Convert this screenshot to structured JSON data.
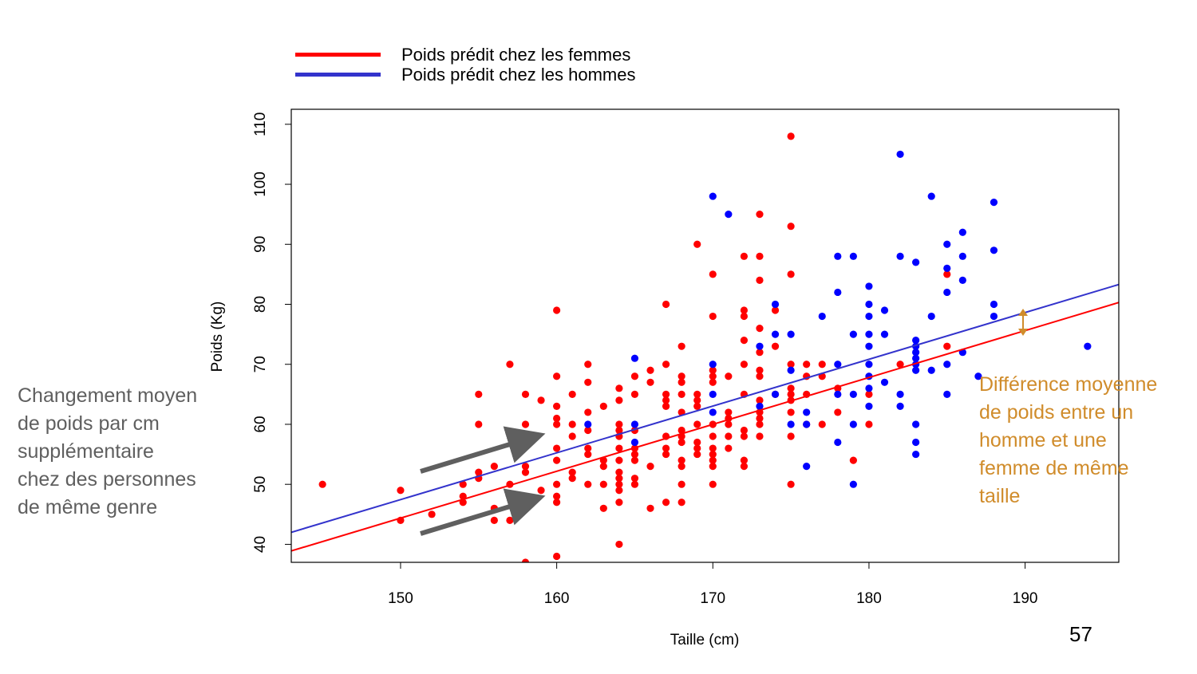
{
  "legend": {
    "items": [
      {
        "label": "Poids prédit chez les femmes",
        "color": "#ff0000"
      },
      {
        "label": "Poids prédit chez les hommes",
        "color": "#3333cc"
      }
    ]
  },
  "annotations": {
    "left": "Changement moyen de poids par cm supplémentaire chez des personnes de même genre",
    "right": "Différence moyenne de poids entre un homme et une femme de même taille",
    "arrow_color": "#5f5f5f",
    "accent_color": "#d08c2b"
  },
  "page_number": "57",
  "chart_data": {
    "type": "scatter",
    "title": "",
    "xlabel": "Taille (cm)",
    "ylabel": "Poids (Kg)",
    "xlim": [
      143,
      196
    ],
    "ylim": [
      37,
      112.5
    ],
    "xticks": [
      150,
      160,
      170,
      180,
      190
    ],
    "yticks": [
      40,
      50,
      60,
      70,
      80,
      90,
      100,
      110
    ],
    "grid": false,
    "legend_position": "top",
    "series": [
      {
        "name": "Poids prédit chez les femmes",
        "type": "line",
        "color": "#ff0000",
        "x": [
          143,
          196
        ],
        "y": [
          38.9,
          80.3
        ]
      },
      {
        "name": "Poids prédit chez les hommes",
        "type": "line",
        "color": "#3333cc",
        "x": [
          143,
          196
        ],
        "y": [
          42.0,
          83.3
        ]
      },
      {
        "name": "Femmes",
        "type": "scatter",
        "color": "#ff0000",
        "points": [
          [
            145,
            50
          ],
          [
            150,
            49
          ],
          [
            150,
            44
          ],
          [
            152,
            45
          ],
          [
            154,
            47
          ],
          [
            154,
            48
          ],
          [
            154,
            50
          ],
          [
            155,
            52
          ],
          [
            155,
            51
          ],
          [
            155,
            60
          ],
          [
            155,
            65
          ],
          [
            156,
            53
          ],
          [
            156,
            44
          ],
          [
            156,
            46
          ],
          [
            157,
            50
          ],
          [
            157,
            44
          ],
          [
            157,
            70
          ],
          [
            158,
            65
          ],
          [
            158,
            60
          ],
          [
            158,
            58
          ],
          [
            158,
            53
          ],
          [
            158,
            52
          ],
          [
            158,
            48
          ],
          [
            158,
            46
          ],
          [
            158,
            37
          ],
          [
            159,
            64
          ],
          [
            159,
            49
          ],
          [
            160,
            79
          ],
          [
            160,
            68
          ],
          [
            160,
            63
          ],
          [
            160,
            61
          ],
          [
            160,
            60
          ],
          [
            160,
            56
          ],
          [
            160,
            54
          ],
          [
            160,
            50
          ],
          [
            160,
            48
          ],
          [
            160,
            47
          ],
          [
            160,
            38
          ],
          [
            161,
            65
          ],
          [
            161,
            60
          ],
          [
            161,
            58
          ],
          [
            161,
            52
          ],
          [
            161,
            51
          ],
          [
            162,
            70
          ],
          [
            162,
            67
          ],
          [
            162,
            62
          ],
          [
            162,
            59
          ],
          [
            162,
            56
          ],
          [
            162,
            55
          ],
          [
            162,
            50
          ],
          [
            163,
            63
          ],
          [
            163,
            54
          ],
          [
            163,
            53
          ],
          [
            163,
            50
          ],
          [
            163,
            46
          ],
          [
            164,
            66
          ],
          [
            164,
            64
          ],
          [
            164,
            60
          ],
          [
            164,
            59
          ],
          [
            164,
            58
          ],
          [
            164,
            56
          ],
          [
            164,
            54
          ],
          [
            164,
            52
          ],
          [
            164,
            51
          ],
          [
            164,
            50
          ],
          [
            164,
            49
          ],
          [
            164,
            47
          ],
          [
            164,
            40
          ],
          [
            165,
            68
          ],
          [
            165,
            65
          ],
          [
            165,
            59
          ],
          [
            165,
            56
          ],
          [
            165,
            55
          ],
          [
            165,
            54
          ],
          [
            165,
            51
          ],
          [
            165,
            50
          ],
          [
            166,
            69
          ],
          [
            166,
            67
          ],
          [
            166,
            53
          ],
          [
            166,
            46
          ],
          [
            167,
            80
          ],
          [
            167,
            70
          ],
          [
            167,
            65
          ],
          [
            167,
            64
          ],
          [
            167,
            63
          ],
          [
            167,
            58
          ],
          [
            167,
            56
          ],
          [
            167,
            55
          ],
          [
            167,
            47
          ],
          [
            168,
            73
          ],
          [
            168,
            68
          ],
          [
            168,
            67
          ],
          [
            168,
            65
          ],
          [
            168,
            62
          ],
          [
            168,
            59
          ],
          [
            168,
            58
          ],
          [
            168,
            57
          ],
          [
            168,
            54
          ],
          [
            168,
            53
          ],
          [
            168,
            50
          ],
          [
            168,
            47
          ],
          [
            169,
            90
          ],
          [
            169,
            65
          ],
          [
            169,
            64
          ],
          [
            169,
            63
          ],
          [
            169,
            60
          ],
          [
            169,
            57
          ],
          [
            169,
            56
          ],
          [
            169,
            55
          ],
          [
            170,
            85
          ],
          [
            170,
            78
          ],
          [
            170,
            69
          ],
          [
            170,
            68
          ],
          [
            170,
            67
          ],
          [
            170,
            60
          ],
          [
            170,
            58
          ],
          [
            170,
            56
          ],
          [
            170,
            55
          ],
          [
            170,
            54
          ],
          [
            170,
            53
          ],
          [
            170,
            50
          ],
          [
            171,
            68
          ],
          [
            171,
            62
          ],
          [
            171,
            61
          ],
          [
            171,
            60
          ],
          [
            171,
            58
          ],
          [
            171,
            56
          ],
          [
            172,
            88
          ],
          [
            172,
            79
          ],
          [
            172,
            78
          ],
          [
            172,
            74
          ],
          [
            172,
            70
          ],
          [
            172,
            65
          ],
          [
            172,
            59
          ],
          [
            172,
            58
          ],
          [
            172,
            54
          ],
          [
            172,
            53
          ],
          [
            173,
            95
          ],
          [
            173,
            88
          ],
          [
            173,
            84
          ],
          [
            173,
            76
          ],
          [
            173,
            72
          ],
          [
            173,
            69
          ],
          [
            173,
            68
          ],
          [
            173,
            64
          ],
          [
            173,
            62
          ],
          [
            173,
            61
          ],
          [
            173,
            60
          ],
          [
            173,
            58
          ],
          [
            174,
            79
          ],
          [
            174,
            73
          ],
          [
            174,
            65
          ],
          [
            175,
            108
          ],
          [
            175,
            93
          ],
          [
            175,
            85
          ],
          [
            175,
            70
          ],
          [
            175,
            66
          ],
          [
            175,
            65
          ],
          [
            175,
            64
          ],
          [
            175,
            62
          ],
          [
            175,
            58
          ],
          [
            175,
            50
          ],
          [
            176,
            70
          ],
          [
            176,
            68
          ],
          [
            176,
            65
          ],
          [
            176,
            60
          ],
          [
            177,
            70
          ],
          [
            177,
            68
          ],
          [
            177,
            60
          ],
          [
            178,
            66
          ],
          [
            178,
            62
          ],
          [
            179,
            54
          ],
          [
            180,
            65
          ],
          [
            180,
            60
          ],
          [
            182,
            70
          ],
          [
            185,
            85
          ],
          [
            185,
            73
          ]
        ]
      },
      {
        "name": "Hommes",
        "type": "scatter",
        "color": "#0000ff",
        "points": [
          [
            162,
            60
          ],
          [
            165,
            71
          ],
          [
            165,
            60
          ],
          [
            165,
            57
          ],
          [
            170,
            98
          ],
          [
            170,
            70
          ],
          [
            170,
            65
          ],
          [
            170,
            62
          ],
          [
            171,
            95
          ],
          [
            173,
            73
          ],
          [
            173,
            63
          ],
          [
            174,
            80
          ],
          [
            174,
            75
          ],
          [
            174,
            65
          ],
          [
            175,
            75
          ],
          [
            175,
            69
          ],
          [
            175,
            60
          ],
          [
            176,
            62
          ],
          [
            176,
            60
          ],
          [
            176,
            53
          ],
          [
            177,
            78
          ],
          [
            178,
            88
          ],
          [
            178,
            82
          ],
          [
            178,
            70
          ],
          [
            178,
            65
          ],
          [
            178,
            57
          ],
          [
            179,
            88
          ],
          [
            179,
            75
          ],
          [
            179,
            65
          ],
          [
            179,
            60
          ],
          [
            179,
            50
          ],
          [
            180,
            83
          ],
          [
            180,
            80
          ],
          [
            180,
            78
          ],
          [
            180,
            75
          ],
          [
            180,
            73
          ],
          [
            180,
            70
          ],
          [
            180,
            68
          ],
          [
            180,
            66
          ],
          [
            180,
            63
          ],
          [
            181,
            79
          ],
          [
            181,
            75
          ],
          [
            181,
            67
          ],
          [
            182,
            105
          ],
          [
            182,
            88
          ],
          [
            182,
            65
          ],
          [
            182,
            63
          ],
          [
            183,
            87
          ],
          [
            183,
            74
          ],
          [
            183,
            73
          ],
          [
            183,
            72
          ],
          [
            183,
            71
          ],
          [
            183,
            70
          ],
          [
            183,
            69
          ],
          [
            183,
            60
          ],
          [
            183,
            57
          ],
          [
            183,
            55
          ],
          [
            184,
            98
          ],
          [
            184,
            78
          ],
          [
            184,
            69
          ],
          [
            185,
            90
          ],
          [
            185,
            86
          ],
          [
            185,
            82
          ],
          [
            185,
            70
          ],
          [
            185,
            65
          ],
          [
            186,
            92
          ],
          [
            186,
            88
          ],
          [
            186,
            84
          ],
          [
            186,
            72
          ],
          [
            187,
            68
          ],
          [
            188,
            97
          ],
          [
            188,
            89
          ],
          [
            188,
            80
          ],
          [
            188,
            78
          ],
          [
            194,
            73
          ]
        ]
      }
    ]
  }
}
